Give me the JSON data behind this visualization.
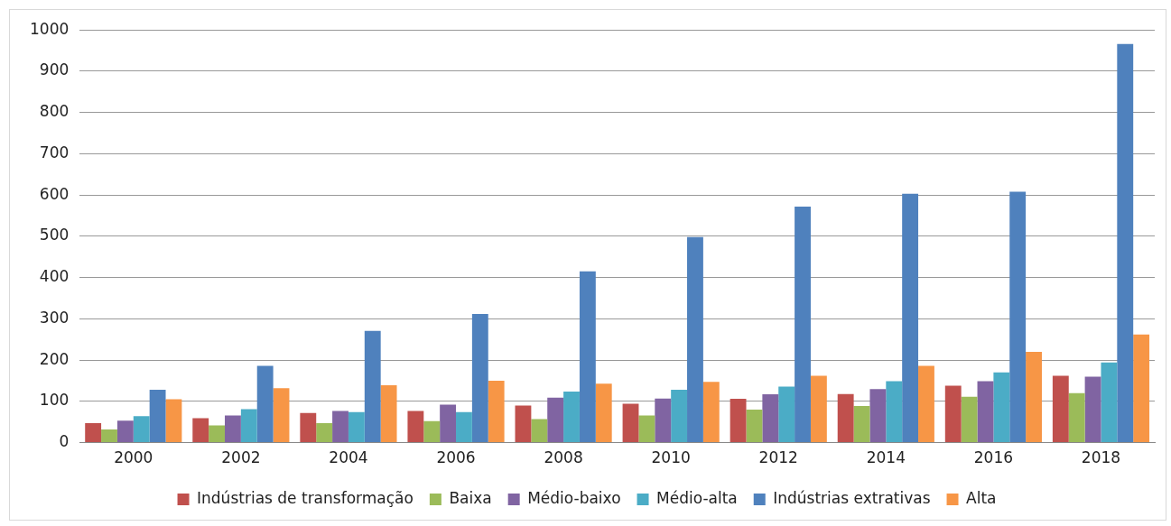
{
  "chart_data": {
    "type": "bar",
    "categories": [
      "2000",
      "2002",
      "2004",
      "2006",
      "2008",
      "2010",
      "2012",
      "2014",
      "2016",
      "2018"
    ],
    "series": [
      {
        "name": "Indústrias de transformação",
        "color": "#c0504d",
        "values": [
          47,
          59,
          72,
          77,
          90,
          94,
          106,
          118,
          138,
          162
        ]
      },
      {
        "name": "Baixa",
        "color": "#9bbb59",
        "values": [
          32,
          42,
          47,
          52,
          57,
          66,
          80,
          89,
          111,
          120
        ]
      },
      {
        "name": "Médio-baixo",
        "color": "#8064a2",
        "values": [
          53,
          66,
          77,
          92,
          109,
          107,
          117,
          130,
          149,
          160
        ]
      },
      {
        "name": "Médio-alta",
        "color": "#4bacc6",
        "values": [
          64,
          81,
          74,
          74,
          124,
          128,
          136,
          149,
          170,
          194
        ]
      },
      {
        "name": "Indústrias extrativas",
        "color": "#4f81bd",
        "values": [
          128,
          186,
          271,
          312,
          415,
          498,
          572,
          603,
          608,
          966
        ]
      },
      {
        "name": "Alta",
        "color": "#f79646",
        "values": [
          105,
          132,
          139,
          150,
          143,
          147,
          162,
          186,
          220,
          262
        ]
      }
    ],
    "ylim": [
      0,
      1000
    ],
    "yticks": [
      0,
      100,
      200,
      300,
      400,
      500,
      600,
      700,
      800,
      900,
      1000
    ],
    "grid": "y",
    "legend": "bottom"
  }
}
